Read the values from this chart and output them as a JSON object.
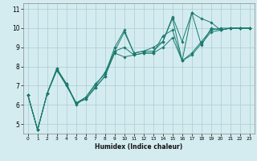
{
  "xlabel": "Humidex (Indice chaleur)",
  "bg_color": "#d4ecf0",
  "grid_color": "#aaccd4",
  "line_color": "#1a7a6e",
  "xlim": [
    -0.5,
    23.5
  ],
  "ylim": [
    4.5,
    11.3
  ],
  "xticks": [
    0,
    1,
    2,
    3,
    4,
    5,
    6,
    7,
    8,
    9,
    10,
    11,
    12,
    13,
    14,
    15,
    16,
    17,
    18,
    19,
    20,
    21,
    22,
    23
  ],
  "yticks": [
    5,
    6,
    7,
    8,
    9,
    10,
    11
  ],
  "lines": [
    {
      "x": [
        0,
        1,
        2,
        3,
        4,
        5,
        6,
        7,
        8,
        9,
        10,
        11,
        12,
        13,
        14,
        15,
        16,
        17,
        18,
        19,
        20,
        21,
        22,
        23
      ],
      "y": [
        6.5,
        4.7,
        6.6,
        7.9,
        7.0,
        6.1,
        6.3,
        6.9,
        7.5,
        8.7,
        8.5,
        8.6,
        8.7,
        8.7,
        9.6,
        9.9,
        8.3,
        8.6,
        9.2,
        9.8,
        9.9,
        10.0,
        10.0,
        10.0
      ]
    },
    {
      "x": [
        0,
        1,
        2,
        3,
        4,
        5,
        6,
        7,
        8,
        9,
        10,
        11,
        12,
        13,
        14,
        15,
        16,
        17,
        18,
        19,
        20,
        21,
        22,
        23
      ],
      "y": [
        6.5,
        4.7,
        6.6,
        7.8,
        7.1,
        6.0,
        6.4,
        7.0,
        7.7,
        8.8,
        9.8,
        8.7,
        8.8,
        9.0,
        9.3,
        10.6,
        9.3,
        10.8,
        10.5,
        10.3,
        9.9,
        10.0,
        10.0,
        10.0
      ]
    },
    {
      "x": [
        0,
        1,
        2,
        3,
        4,
        5,
        6,
        7,
        8,
        9,
        10,
        11,
        12,
        13,
        14,
        15,
        16,
        17,
        18,
        19,
        20,
        21,
        22,
        23
      ],
      "y": [
        6.5,
        4.7,
        6.6,
        7.9,
        7.1,
        6.1,
        6.4,
        7.1,
        7.6,
        9.0,
        9.9,
        8.7,
        8.8,
        8.8,
        9.3,
        10.5,
        8.3,
        10.8,
        9.1,
        10.0,
        9.9,
        10.0,
        10.0,
        10.0
      ]
    },
    {
      "x": [
        0,
        1,
        2,
        3,
        4,
        5,
        6,
        7,
        8,
        9,
        10,
        11,
        12,
        13,
        14,
        15,
        16,
        17,
        18,
        19,
        20,
        21,
        22,
        23
      ],
      "y": [
        6.5,
        4.7,
        6.6,
        7.8,
        7.0,
        6.1,
        6.3,
        6.9,
        7.5,
        8.8,
        9.0,
        8.6,
        8.7,
        8.7,
        9.0,
        9.5,
        8.3,
        8.7,
        9.3,
        9.9,
        10.0,
        10.0,
        10.0,
        10.0
      ]
    }
  ]
}
